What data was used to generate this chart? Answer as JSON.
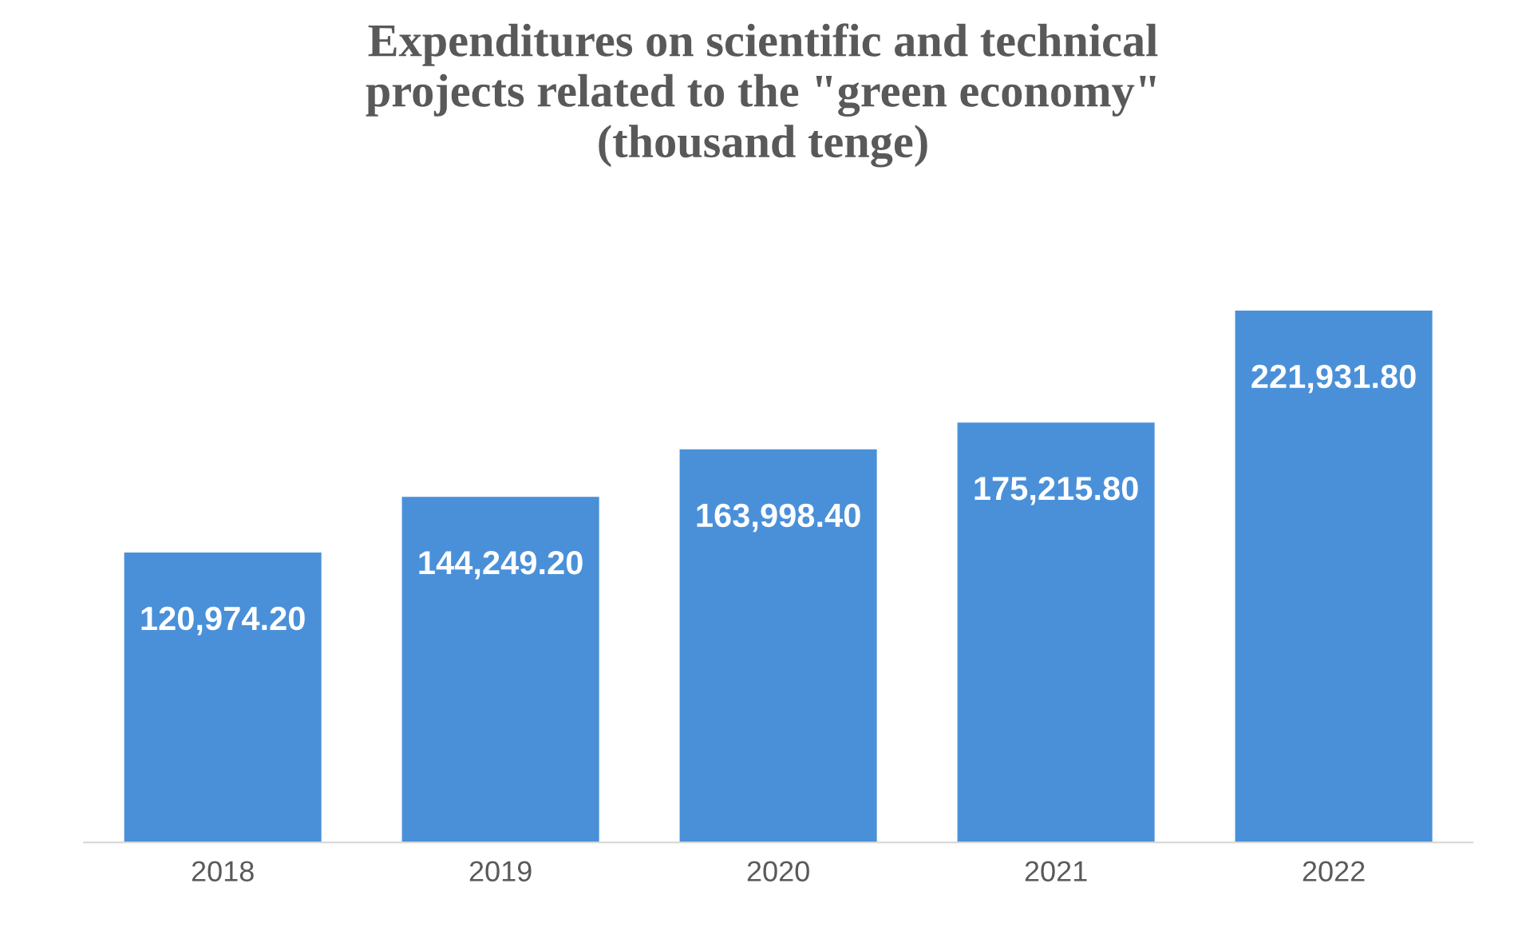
{
  "chart_data": {
    "type": "bar",
    "title": "Expenditures on scientific and technical\nprojects related to the \"green economy\"\n(thousand tenge)",
    "categories": [
      "2018",
      "2019",
      "2020",
      "2021",
      "2022"
    ],
    "values": [
      120974.2,
      144249.2,
      163998.4,
      175215.8,
      221931.8
    ],
    "value_labels": [
      "120,974.20",
      "144,249.20",
      "163,998.40",
      "175,215.80",
      "221,931.80"
    ],
    "color": "#4a90d9",
    "grid": false,
    "legend": false
  }
}
